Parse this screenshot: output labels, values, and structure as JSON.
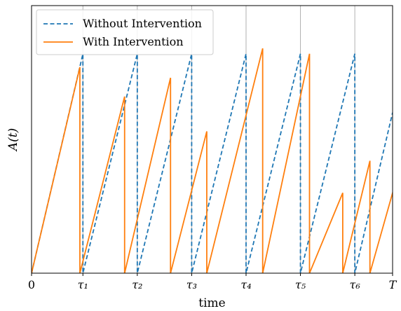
{
  "chart_data": {
    "type": "line",
    "title": "",
    "xlabel": "time",
    "ylabel": "A(t)",
    "xlim": [
      0,
      11.95
    ],
    "ylim": [
      0,
      1.0
    ],
    "grid": "vertical lines at tau ticks",
    "legend_position": "top-left",
    "x_ticks": [
      {
        "x": 0,
        "label": "0"
      },
      {
        "x": 1.7,
        "label": "τ₁"
      },
      {
        "x": 3.5,
        "label": "τ₂"
      },
      {
        "x": 5.3,
        "label": "τ₃"
      },
      {
        "x": 7.1,
        "label": "τ₄"
      },
      {
        "x": 8.9,
        "label": "τ₅"
      },
      {
        "x": 10.7,
        "label": "τ₆"
      },
      {
        "x": 11.95,
        "label": "T"
      }
    ],
    "series": [
      {
        "name": "Without Intervention",
        "color": "#1f77b4",
        "style": "dashed",
        "x": [
          0,
          1.7,
          1.7,
          3.5,
          3.5,
          5.3,
          5.3,
          7.1,
          7.1,
          8.9,
          8.9,
          10.7,
          10.7,
          11.95
        ],
        "y": [
          0,
          0.82,
          0,
          0.82,
          0,
          0.82,
          0,
          0.82,
          0,
          0.82,
          0,
          0.82,
          0,
          0.6
        ]
      },
      {
        "name": "With Intervention",
        "color": "#ff7f0e",
        "style": "solid",
        "x": [
          0,
          1.6,
          1.6,
          3.08,
          3.08,
          4.6,
          4.6,
          5.8,
          5.8,
          7.65,
          7.65,
          9.2,
          9.2,
          10.3,
          10.3,
          11.2,
          11.2,
          12.1
        ],
        "y": [
          0,
          0.77,
          0,
          0.66,
          0,
          0.73,
          0,
          0.53,
          0,
          0.84,
          0,
          0.82,
          0,
          0.3,
          0,
          0.42,
          0,
          0.36
        ]
      }
    ]
  }
}
